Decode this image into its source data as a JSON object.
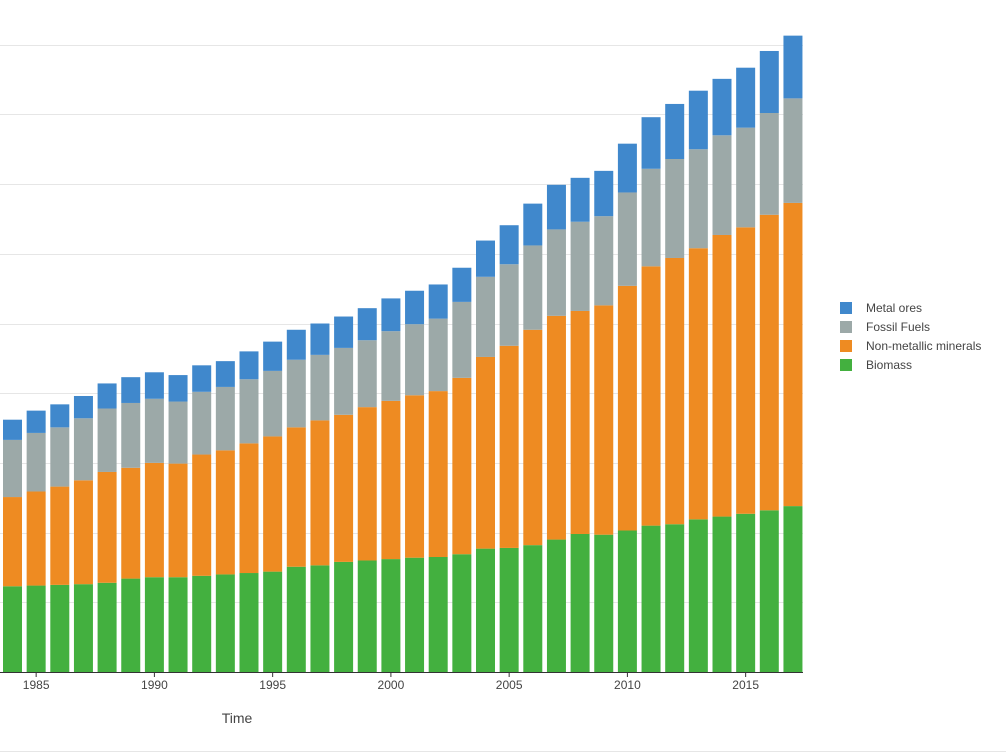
{
  "chart_data": {
    "type": "bar",
    "stacked": true,
    "title": "",
    "xlabel": "Time",
    "ylabel": "",
    "categories": [
      1984,
      1985,
      1986,
      1987,
      1988,
      1989,
      1990,
      1991,
      1992,
      1993,
      1994,
      1995,
      1996,
      1997,
      1998,
      1999,
      2000,
      2001,
      2002,
      2003,
      2004,
      2005,
      2006,
      2007,
      2008,
      2009,
      2010,
      2011,
      2012,
      2013,
      2014,
      2015,
      2016,
      2017
    ],
    "x_tick_labels": [
      "1985",
      "1990",
      "1995",
      "2000",
      "2005",
      "2010",
      "2015"
    ],
    "ylim": [
      0,
      90
    ],
    "grid": true,
    "legend_position": "right",
    "series": [
      {
        "name": "Biomass",
        "color": "#43b03f",
        "values": [
          12.3,
          12.4,
          12.5,
          12.6,
          12.8,
          13.4,
          13.6,
          13.6,
          13.8,
          14.0,
          14.2,
          14.4,
          15.1,
          15.3,
          15.8,
          16.0,
          16.2,
          16.4,
          16.5,
          16.9,
          17.7,
          17.8,
          18.2,
          19.0,
          19.8,
          19.7,
          20.3,
          21.0,
          21.2,
          21.9,
          22.3,
          22.7,
          23.2,
          23.8
        ]
      },
      {
        "name": "Non-metallic minerals",
        "color": "#ee8b22",
        "values": [
          12.8,
          13.5,
          14.1,
          14.9,
          15.9,
          15.9,
          16.4,
          16.3,
          17.4,
          17.8,
          18.6,
          19.4,
          20.0,
          20.8,
          21.1,
          22.0,
          22.7,
          23.3,
          23.8,
          25.3,
          27.5,
          29.0,
          30.9,
          32.1,
          32.0,
          32.9,
          35.1,
          37.2,
          38.2,
          38.9,
          40.4,
          41.1,
          42.4,
          43.5
        ]
      },
      {
        "name": "Fossil Fuels",
        "color": "#9ca9a8",
        "values": [
          8.2,
          8.4,
          8.5,
          8.9,
          9.1,
          9.3,
          9.2,
          8.9,
          9.0,
          9.1,
          9.2,
          9.4,
          9.7,
          9.4,
          9.6,
          9.6,
          10.0,
          10.2,
          10.4,
          10.9,
          11.5,
          11.7,
          12.1,
          12.4,
          12.8,
          12.8,
          13.4,
          14.0,
          14.2,
          14.2,
          14.3,
          14.3,
          14.6,
          15.0
        ]
      },
      {
        "name": "Metal ores",
        "color": "#4088cc",
        "values": [
          2.9,
          3.2,
          3.3,
          3.2,
          3.6,
          3.7,
          3.8,
          3.8,
          3.8,
          3.7,
          4.0,
          4.2,
          4.3,
          4.5,
          4.5,
          4.6,
          4.7,
          4.8,
          4.9,
          4.9,
          5.2,
          5.6,
          6.0,
          6.4,
          6.3,
          6.5,
          7.0,
          7.4,
          7.9,
          8.4,
          8.1,
          8.6,
          8.9,
          9.0
        ]
      }
    ]
  }
}
